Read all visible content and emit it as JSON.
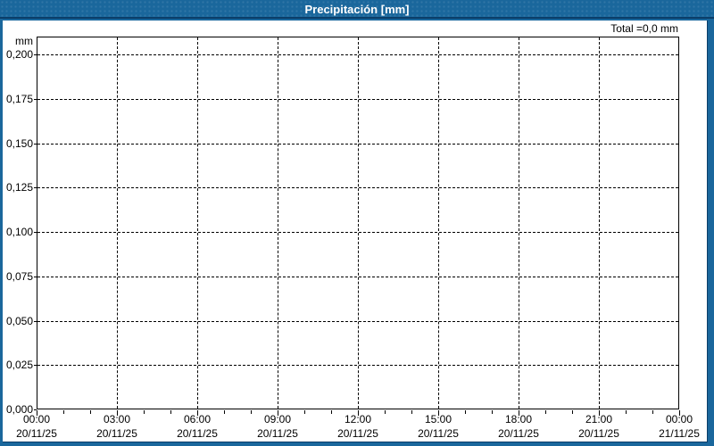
{
  "window": {
    "title": "Precipitación [mm]"
  },
  "chart": {
    "total_label": "Total =0,0 mm",
    "y_axis_unit": "mm"
  },
  "chart_data": {
    "type": "line",
    "title": "Precipitación [mm]",
    "ylabel": "mm",
    "xlabel": "",
    "ylim": [
      0,
      0.2
    ],
    "y_tick_step": 0.025,
    "y_tick_labels": [
      "0,200",
      "0,175",
      "0,150",
      "0,125",
      "0,100",
      "0,075",
      "0,050",
      "0,025",
      "0,000"
    ],
    "x_tick_labels": [
      {
        "time": "00:00",
        "date": "20/11/25"
      },
      {
        "time": "03:00",
        "date": "20/11/25"
      },
      {
        "time": "06:00",
        "date": "20/11/25"
      },
      {
        "time": "09:00",
        "date": "20/11/25"
      },
      {
        "time": "12:00",
        "date": "20/11/25"
      },
      {
        "time": "15:00",
        "date": "20/11/25"
      },
      {
        "time": "18:00",
        "date": "20/11/25"
      },
      {
        "time": "21:00",
        "date": "20/11/25"
      },
      {
        "time": "00:00",
        "date": "21/11/25"
      }
    ],
    "x_minor_tick_hours": 1,
    "x_major_tick_hours": 3,
    "grid": true,
    "grid_style": "dashed",
    "legend_position": "none",
    "series": [
      {
        "name": "Precipitación",
        "unit": "mm",
        "points": [],
        "total": "0,0 mm"
      }
    ],
    "annotations": [
      "Total =0,0 mm"
    ]
  },
  "colors": {
    "titlebar_blue": "#1a679c",
    "frame_navy": "#0b3d68",
    "plot_background": "#ffffff",
    "grid_and_text": "#000000",
    "title_text": "#ffffff"
  }
}
